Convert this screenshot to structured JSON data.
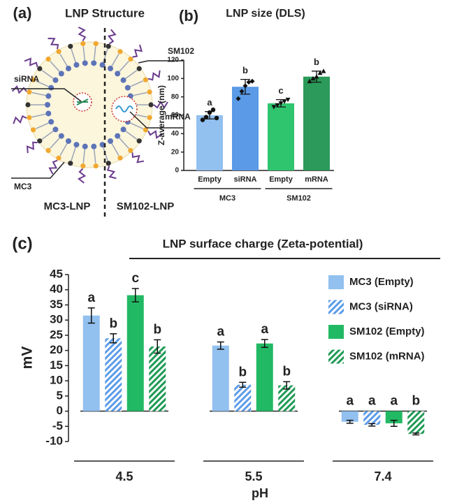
{
  "diagram": {
    "panel_label": "(a)",
    "title": "LNP Structure",
    "labels": [
      "SM102",
      "siRNA",
      "mRNA",
      "MC3"
    ],
    "captions": [
      "MC3-LNP",
      "SM102-LNP"
    ]
  },
  "chart_data": [
    {
      "type": "bar",
      "panel_label": "(b)",
      "title": "LNP size (DLS)",
      "y_label": "Z-average (nm)",
      "categories": [
        "Empty",
        "siRNA",
        "Empty",
        "mRNA"
      ],
      "groups": [
        "MC3",
        "SM102"
      ],
      "values": [
        60,
        91,
        73,
        102
      ],
      "errors": [
        4,
        8,
        4,
        6
      ],
      "points": [
        [
          55,
          58,
          63,
          66,
          57
        ],
        [
          78,
          86,
          92,
          96,
          97
        ],
        [
          69,
          71,
          73,
          75,
          77
        ],
        [
          97,
          100,
          102,
          106,
          108
        ]
      ],
      "markers": [
        "circle",
        "diamond",
        "triangle-down",
        "triangle"
      ],
      "significance": [
        "a",
        "b",
        "c",
        "b"
      ],
      "colors": [
        "#92c0ef",
        "#5a9ae6",
        "#2fc46e",
        "#2b9a5a"
      ],
      "ylim": [
        0,
        120
      ],
      "yticks": [
        0,
        20,
        40,
        60,
        80,
        100,
        120
      ]
    },
    {
      "type": "grouped-bar",
      "panel_label": "(c)",
      "title": "LNP surface charge (Zeta-potential)",
      "y_label": "mV",
      "x_label": "pH",
      "categories": [
        "4.5",
        "5.5",
        "7.4"
      ],
      "series": [
        {
          "name": "MC3 (Empty)",
          "color": "#92c0ef",
          "hatch": false,
          "values": [
            31.5,
            21.6,
            -3.5
          ],
          "errors": [
            2.5,
            1.2,
            0.5
          ],
          "significance": [
            "a",
            "a",
            "a"
          ]
        },
        {
          "name": "MC3 (siRNA)",
          "color": "#5b9be8",
          "hatch": true,
          "values": [
            24,
            8.7,
            -4.5
          ],
          "errors": [
            1.5,
            0.8,
            0.4
          ],
          "significance": [
            "b",
            "b",
            "a"
          ]
        },
        {
          "name": "SM102 (Empty)",
          "color": "#22b964",
          "hatch": false,
          "values": [
            38.2,
            22.3,
            -4
          ],
          "errors": [
            2.2,
            1.3,
            1
          ],
          "significance": [
            "c",
            "a",
            "a"
          ]
        },
        {
          "name": "SM102 (mRNA)",
          "color": "#1f9a55",
          "hatch": true,
          "values": [
            21.3,
            8.5,
            -7.5
          ],
          "errors": [
            2.2,
            1.2,
            0.3
          ],
          "significance": [
            "b",
            "b",
            "b"
          ]
        }
      ],
      "ylim": [
        -10,
        45
      ],
      "yticks": [
        -10,
        -5,
        0,
        5,
        10,
        15,
        20,
        25,
        30,
        35,
        40,
        45
      ]
    }
  ]
}
